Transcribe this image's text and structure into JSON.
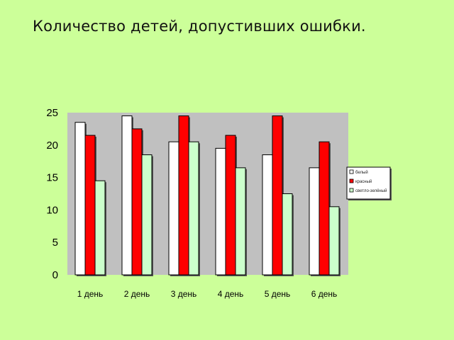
{
  "slide": {
    "title": "Количество детей, допустивших ошибки."
  },
  "chart_data": {
    "type": "bar",
    "categories": [
      "1 день",
      "2 день",
      "3 день",
      "4 день",
      "5 день",
      "6 день"
    ],
    "series": [
      {
        "name": "белый",
        "color": "#ffffff",
        "values": [
          23.5,
          24.5,
          20.5,
          19.5,
          18.5,
          16.5
        ]
      },
      {
        "name": "красный",
        "color": "#ff0000",
        "values": [
          21.5,
          22.5,
          24.5,
          21.5,
          24.5,
          20.5
        ]
      },
      {
        "name": "светло-зелёный",
        "color": "#ccffcc",
        "values": [
          14.5,
          18.5,
          20.5,
          16.5,
          12.5,
          10.5
        ]
      }
    ],
    "ylim": [
      0,
      25
    ],
    "yticks": [
      0,
      5,
      10,
      15,
      20,
      25
    ],
    "grid": false,
    "legend_position": "right",
    "plot_background": "#c0c0c0"
  }
}
